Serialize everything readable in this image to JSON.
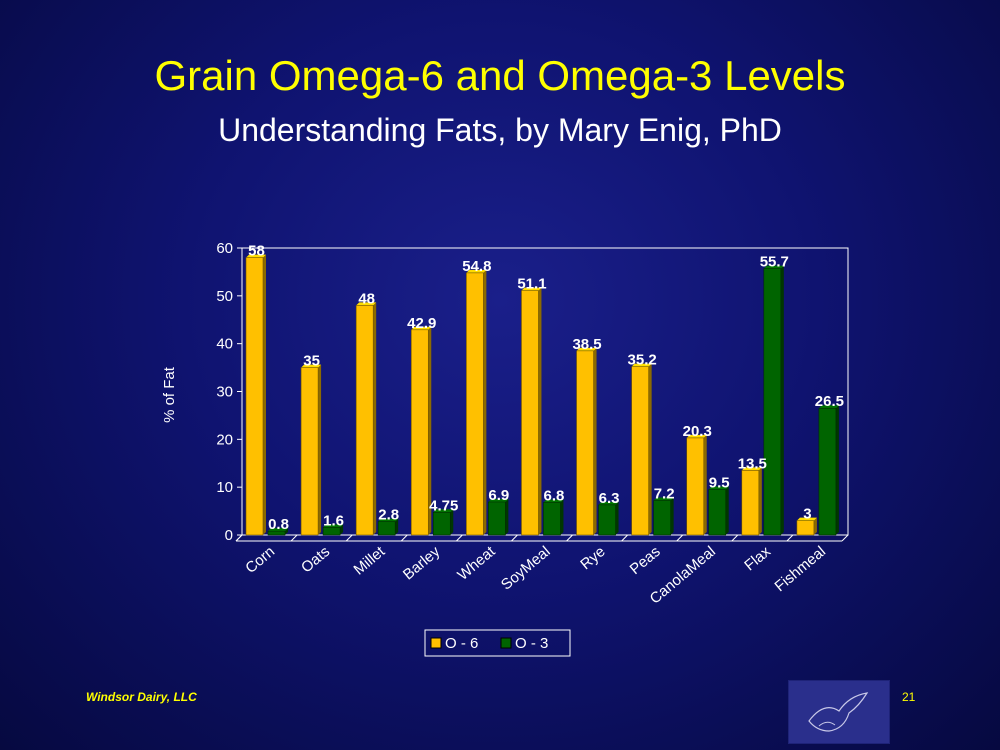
{
  "slide": {
    "title": "Grain Omega-6 and Omega-3 Levels",
    "subtitle": "Understanding Fats, by Mary Enig, PhD",
    "footer": "Windsor Dairy, LLC",
    "page_number": "21"
  },
  "colors": {
    "o6": "#ffc000",
    "o3": "#006400",
    "title": "#ffff00"
  },
  "chart_data": {
    "type": "bar",
    "title": "",
    "xlabel": "",
    "ylabel": "% of Fat",
    "ylim": [
      0,
      60
    ],
    "yticks": [
      0,
      10,
      20,
      30,
      40,
      50,
      60
    ],
    "grid": false,
    "legend_position": "bottom",
    "categories": [
      "Corn",
      "Oats",
      "Millet",
      "Barley",
      "Wheat",
      "SoyMeal",
      "Rye",
      "Peas",
      "CanolaMeal",
      "Flax",
      "Fishmeal"
    ],
    "series": [
      {
        "name": "O - 6",
        "values": [
          58,
          35,
          48,
          42.9,
          54.8,
          51.1,
          38.5,
          35.2,
          20.3,
          13.5,
          3
        ],
        "labels": [
          "58",
          "35",
          "48",
          "42.9",
          "54.8",
          "51.1",
          "38.5",
          "35.2",
          "20.3",
          "13.5",
          "3"
        ]
      },
      {
        "name": "O - 3",
        "values": [
          0.8,
          1.6,
          2.8,
          4.75,
          6.9,
          6.8,
          6.3,
          7.2,
          9.5,
          55.7,
          26.5
        ],
        "labels": [
          "0.8",
          "1.6",
          "2.8",
          "4.75",
          "6.9",
          "6.8",
          "6.3",
          "7.2",
          "9.5",
          "55.7",
          "26.5"
        ]
      }
    ]
  }
}
